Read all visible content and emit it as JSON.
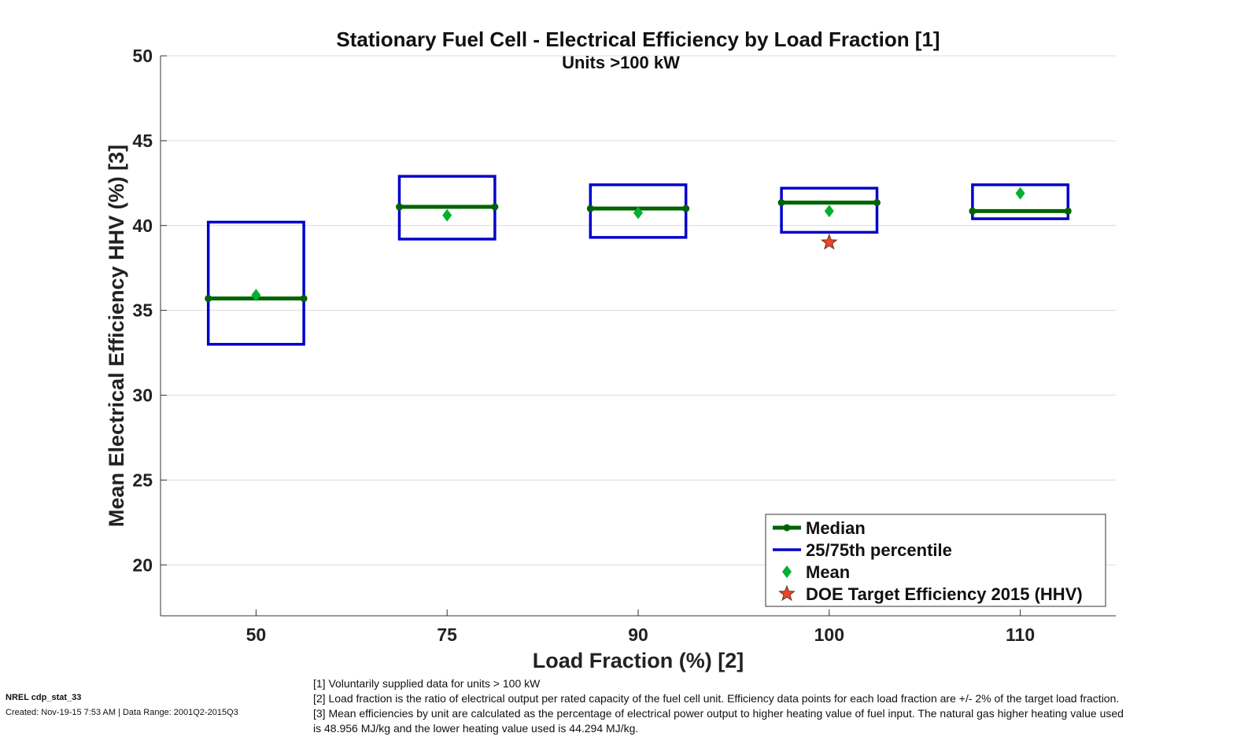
{
  "chart_data": {
    "type": "box",
    "title": "Stationary Fuel Cell - Electrical Efficiency by Load Fraction [1]",
    "subtitle": "Units >100 kW",
    "xlabel": "Load Fraction (%) [2]",
    "ylabel": "Mean Electrical Efficiency HHV (%) [3]",
    "categories": [
      "50",
      "75",
      "90",
      "100",
      "110"
    ],
    "ylim": [
      17,
      50
    ],
    "yticks": [
      20,
      25,
      30,
      35,
      40,
      45,
      50
    ],
    "grid": "horizontal",
    "legend_position": "bottom-right",
    "series": [
      {
        "name": "Median",
        "color": "#006400",
        "values": [
          35.7,
          41.1,
          41.0,
          41.35,
          40.85
        ]
      },
      {
        "name": "25/75th percentile",
        "color": "#0000cc",
        "p25": [
          33.0,
          39.2,
          39.3,
          39.6,
          40.4
        ],
        "p75": [
          40.2,
          42.9,
          42.4,
          42.2,
          42.4
        ]
      },
      {
        "name": "Mean",
        "color": "#00b030",
        "values": [
          35.9,
          40.6,
          40.75,
          40.85,
          41.9
        ]
      },
      {
        "name": "DOE Target Efficiency 2015 (HHV)",
        "color": "#e8452c",
        "points": [
          {
            "category": "100",
            "value": 39.0
          }
        ]
      }
    ]
  },
  "footer": {
    "id": "NREL cdp_stat_33",
    "created": "Created: Nov-19-15  7:53 AM | Data Range: 2001Q2-2015Q3",
    "notes": [
      "[1] Voluntarily supplied data for units > 100 kW",
      "[2] Load fraction is the ratio of electrical output per rated capacity of the fuel cell unit. Efficiency data points for each load fraction are +/- 2% of the target load fraction.",
      "[3] Mean efficiencies by unit are calculated as the percentage of electrical power output to higher heating value of fuel input. The natural gas higher heating value used",
      "is 48.956 MJ/kg and the lower heating value used is 44.294 MJ/kg."
    ]
  }
}
